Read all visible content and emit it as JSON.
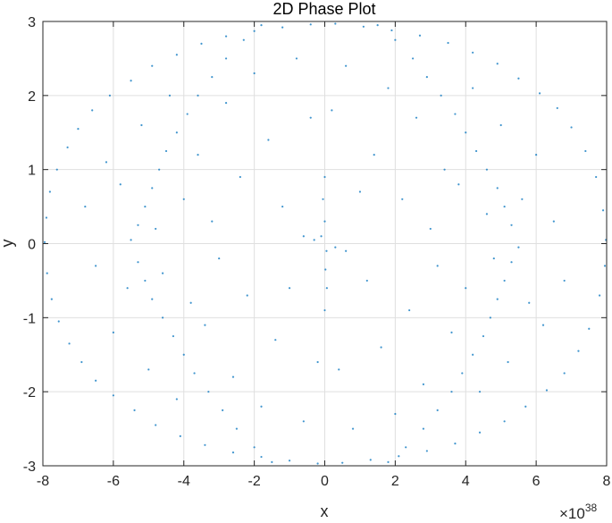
{
  "chart_data": {
    "type": "scatter",
    "title": "2D Phase Plot",
    "xlabel": "x",
    "ylabel": "y",
    "x_exponent_label": {
      "base": "×10",
      "exponent": "38"
    },
    "xlim": [
      -8,
      8
    ],
    "ylim": [
      -3,
      3
    ],
    "xticks": [
      -8,
      -6,
      -4,
      -2,
      0,
      2,
      4,
      6,
      8
    ],
    "yticks": [
      -3,
      -2,
      -1,
      0,
      1,
      2,
      3
    ],
    "xtick_labels": [
      "-8",
      "-6",
      "-4",
      "-2",
      "0",
      "2",
      "4",
      "6",
      "8"
    ],
    "ytick_labels": [
      "-3",
      "-2",
      "-1",
      "0",
      "1",
      "2",
      "3"
    ],
    "grid": true,
    "marker_color": "#0072BD",
    "series": [
      {
        "marker": "dot",
        "points": [
          [
            -7.95,
            0.02
          ],
          [
            -7.9,
            0.35
          ],
          [
            -7.88,
            -0.4
          ],
          [
            -7.8,
            0.7
          ],
          [
            -7.75,
            -0.75
          ],
          [
            -7.6,
            1.0
          ],
          [
            -7.55,
            -1.05
          ],
          [
            -7.3,
            1.3
          ],
          [
            -7.25,
            -1.35
          ],
          [
            -7.0,
            1.55
          ],
          [
            -6.9,
            -1.6
          ],
          [
            -6.6,
            1.8
          ],
          [
            -6.5,
            -1.85
          ],
          [
            -6.1,
            2.0
          ],
          [
            -6.0,
            -2.05
          ],
          [
            -5.5,
            2.2
          ],
          [
            -5.4,
            -2.25
          ],
          [
            -4.9,
            2.4
          ],
          [
            -4.8,
            -2.45
          ],
          [
            -4.2,
            2.55
          ],
          [
            -4.1,
            -2.6
          ],
          [
            -3.5,
            2.7
          ],
          [
            -3.4,
            -2.72
          ],
          [
            -2.8,
            2.8
          ],
          [
            -2.6,
            -2.82
          ],
          [
            -2.0,
            2.87
          ],
          [
            -1.8,
            -2.88
          ],
          [
            -1.2,
            2.92
          ],
          [
            -1.0,
            -2.93
          ],
          [
            -0.4,
            2.96
          ],
          [
            -0.2,
            -2.97
          ],
          [
            0.3,
            2.97
          ],
          [
            0.5,
            -2.96
          ],
          [
            1.1,
            2.93
          ],
          [
            1.3,
            -2.92
          ],
          [
            1.9,
            2.88
          ],
          [
            2.1,
            -2.87
          ],
          [
            2.7,
            2.81
          ],
          [
            2.9,
            -2.8
          ],
          [
            3.5,
            2.71
          ],
          [
            3.7,
            -2.7
          ],
          [
            4.2,
            2.58
          ],
          [
            4.4,
            -2.55
          ],
          [
            4.9,
            2.43
          ],
          [
            5.1,
            -2.4
          ],
          [
            5.5,
            2.23
          ],
          [
            5.7,
            -2.2
          ],
          [
            6.1,
            2.03
          ],
          [
            6.3,
            -1.98
          ],
          [
            6.6,
            1.83
          ],
          [
            6.8,
            -1.75
          ],
          [
            7.0,
            1.57
          ],
          [
            7.2,
            -1.45
          ],
          [
            7.4,
            1.25
          ],
          [
            7.5,
            -1.15
          ],
          [
            7.7,
            0.9
          ],
          [
            7.8,
            -0.7
          ],
          [
            7.9,
            0.45
          ],
          [
            7.95,
            -0.3
          ],
          [
            7.98,
            0.05
          ],
          [
            -5.5,
            0.05
          ],
          [
            -5.3,
            0.25
          ],
          [
            -5.1,
            0.5
          ],
          [
            -4.9,
            0.75
          ],
          [
            -4.7,
            1.0
          ],
          [
            -4.5,
            1.25
          ],
          [
            -4.2,
            1.5
          ],
          [
            -3.9,
            1.75
          ],
          [
            -3.6,
            2.0
          ],
          [
            -3.2,
            2.25
          ],
          [
            -2.8,
            2.5
          ],
          [
            -2.3,
            2.75
          ],
          [
            -1.8,
            2.95
          ],
          [
            -5.3,
            -0.25
          ],
          [
            -5.1,
            -0.5
          ],
          [
            -4.9,
            -0.75
          ],
          [
            -4.6,
            -1.0
          ],
          [
            -4.3,
            -1.25
          ],
          [
            -4.0,
            -1.5
          ],
          [
            -3.7,
            -1.75
          ],
          [
            -3.3,
            -2.0
          ],
          [
            -2.9,
            -2.25
          ],
          [
            -2.5,
            -2.5
          ],
          [
            -2.0,
            -2.75
          ],
          [
            -1.5,
            -2.95
          ],
          [
            5.5,
            -0.05
          ],
          [
            5.3,
            -0.25
          ],
          [
            5.1,
            -0.5
          ],
          [
            4.9,
            -0.75
          ],
          [
            4.7,
            -1.0
          ],
          [
            4.5,
            -1.25
          ],
          [
            4.2,
            -1.5
          ],
          [
            3.9,
            -1.75
          ],
          [
            3.6,
            -2.0
          ],
          [
            3.2,
            -2.25
          ],
          [
            2.8,
            -2.5
          ],
          [
            2.3,
            -2.75
          ],
          [
            1.8,
            -2.95
          ],
          [
            5.3,
            0.25
          ],
          [
            5.1,
            0.5
          ],
          [
            4.9,
            0.75
          ],
          [
            4.6,
            1.0
          ],
          [
            4.3,
            1.25
          ],
          [
            4.0,
            1.5
          ],
          [
            3.7,
            1.75
          ],
          [
            3.3,
            2.0
          ],
          [
            2.9,
            2.25
          ],
          [
            2.5,
            2.5
          ],
          [
            2.0,
            2.75
          ],
          [
            1.5,
            2.95
          ],
          [
            -0.1,
            0.1
          ],
          [
            0.05,
            -0.1
          ],
          [
            0.0,
            0.3
          ],
          [
            0.02,
            -0.35
          ],
          [
            -0.05,
            0.6
          ],
          [
            0.06,
            -0.6
          ],
          [
            0.0,
            0.9
          ],
          [
            0.0,
            -0.9
          ],
          [
            -0.3,
            0.05
          ],
          [
            0.3,
            -0.05
          ],
          [
            -0.6,
            0.1
          ],
          [
            0.6,
            -0.1
          ],
          [
            -6.8,
            0.5
          ],
          [
            -6.5,
            -0.3
          ],
          [
            -6.2,
            1.1
          ],
          [
            -6.0,
            -1.2
          ],
          [
            -5.8,
            0.8
          ],
          [
            -5.6,
            -0.6
          ],
          [
            -5.2,
            1.6
          ],
          [
            -5.0,
            -1.7
          ],
          [
            -4.8,
            0.2
          ],
          [
            -4.6,
            -0.4
          ],
          [
            -4.4,
            2.0
          ],
          [
            -4.2,
            -2.1
          ],
          [
            -4.0,
            0.6
          ],
          [
            -3.8,
            -0.8
          ],
          [
            -3.6,
            1.2
          ],
          [
            -3.4,
            -1.1
          ],
          [
            -3.2,
            0.3
          ],
          [
            -3.0,
            -0.2
          ],
          [
            -2.8,
            1.9
          ],
          [
            -2.6,
            -1.8
          ],
          [
            -2.4,
            0.9
          ],
          [
            -2.2,
            -0.7
          ],
          [
            -2.0,
            2.3
          ],
          [
            -1.8,
            -2.2
          ],
          [
            -1.6,
            1.4
          ],
          [
            -1.4,
            -1.3
          ],
          [
            -1.2,
            0.5
          ],
          [
            -1.0,
            -0.6
          ],
          [
            -0.8,
            2.5
          ],
          [
            -0.6,
            -2.4
          ],
          [
            -0.4,
            1.7
          ],
          [
            -0.2,
            -1.6
          ],
          [
            0.2,
            1.8
          ],
          [
            0.4,
            -1.7
          ],
          [
            0.6,
            2.4
          ],
          [
            0.8,
            -2.5
          ],
          [
            1.0,
            0.7
          ],
          [
            1.2,
            -0.5
          ],
          [
            1.4,
            1.2
          ],
          [
            1.6,
            -1.4
          ],
          [
            1.8,
            2.1
          ],
          [
            2.0,
            -2.3
          ],
          [
            2.2,
            0.6
          ],
          [
            2.4,
            -0.9
          ],
          [
            2.6,
            1.7
          ],
          [
            2.8,
            -1.9
          ],
          [
            3.0,
            0.2
          ],
          [
            3.2,
            -0.3
          ],
          [
            3.4,
            1.0
          ],
          [
            3.6,
            -1.2
          ],
          [
            3.8,
            0.8
          ],
          [
            4.0,
            -0.6
          ],
          [
            4.2,
            2.1
          ],
          [
            4.4,
            -2.0
          ],
          [
            4.6,
            0.4
          ],
          [
            4.8,
            -0.2
          ],
          [
            5.0,
            1.6
          ],
          [
            5.2,
            -1.6
          ],
          [
            5.6,
            0.6
          ],
          [
            5.8,
            -0.8
          ],
          [
            6.0,
            1.2
          ],
          [
            6.2,
            -1.1
          ],
          [
            6.5,
            0.3
          ],
          [
            6.8,
            -0.5
          ]
        ]
      }
    ]
  }
}
